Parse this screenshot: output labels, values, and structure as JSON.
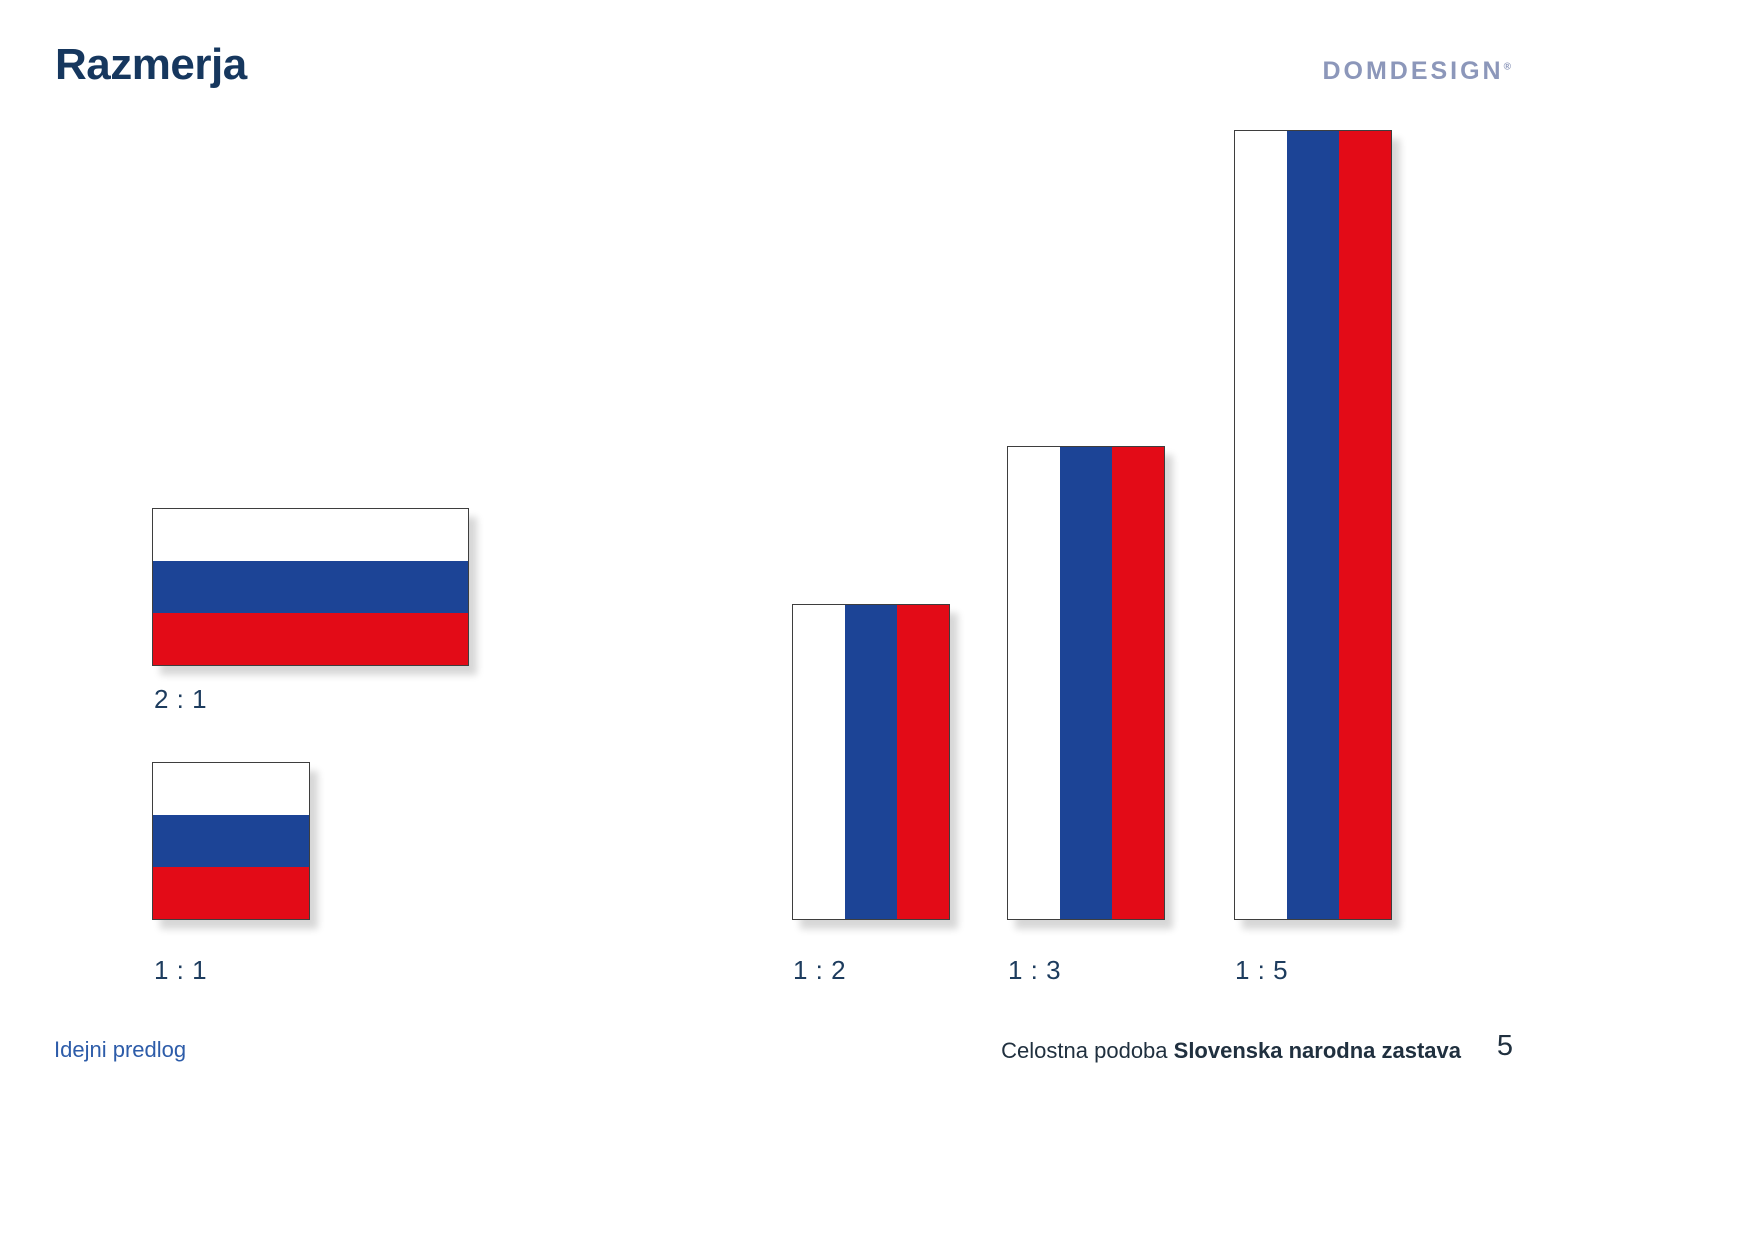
{
  "page": {
    "title": "Razmerja",
    "page_number": "5"
  },
  "logo": {
    "text": "DOMDESIGN",
    "registered_mark": "®"
  },
  "flags": [
    {
      "label": "2 : 1",
      "orientation": "horizontal",
      "ratio": "2:1",
      "stripes": [
        "white",
        "blue",
        "red"
      ]
    },
    {
      "label": "1 : 1",
      "orientation": "horizontal",
      "ratio": "1:1",
      "stripes": [
        "white",
        "blue",
        "red"
      ]
    },
    {
      "label": "1 : 2",
      "orientation": "vertical",
      "ratio": "1:2",
      "stripes": [
        "white",
        "blue",
        "red"
      ]
    },
    {
      "label": "1 : 3",
      "orientation": "vertical",
      "ratio": "1:3",
      "stripes": [
        "white",
        "blue",
        "red"
      ]
    },
    {
      "label": "1 : 5",
      "orientation": "vertical",
      "ratio": "1:5",
      "stripes": [
        "white",
        "blue",
        "red"
      ]
    }
  ],
  "footer": {
    "left_text": "Idejni predlog",
    "right_text_regular": "Celostna podoba ",
    "right_text_bold": "Slovenska narodna zastava"
  },
  "colors": {
    "page_bg": "#FFFFFF",
    "flag_white": "#FFFFFF",
    "flag_blue": "#1C4496",
    "flag_red": "#E30B17",
    "flag_border": "#3E3E3E",
    "title_navy": "#16375E",
    "label_navy": "#1D3C5E",
    "footer_blue": "#2D5CA9",
    "footer_navy": "#20303F",
    "logo_gray_blue": "#8C97BA"
  }
}
